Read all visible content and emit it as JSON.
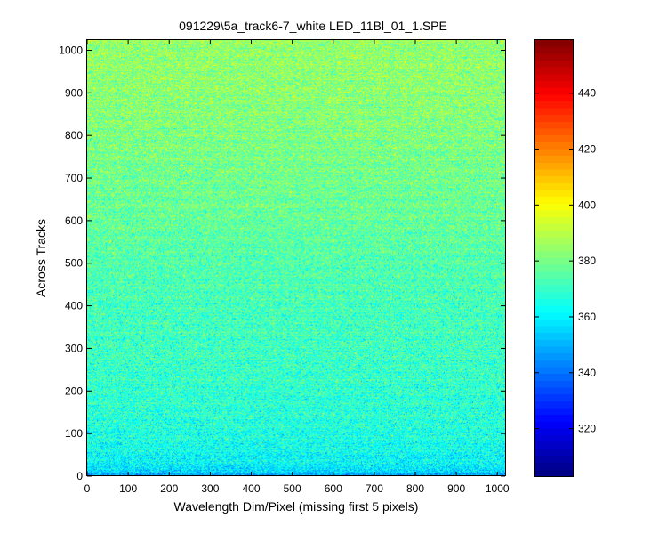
{
  "chart_data": {
    "type": "heatmap",
    "title": "091229\\5a_track6-7_white LED_11Bl_01_1.SPE",
    "xlabel": "Wavelength Dim/Pixel (missing first 5 pixels)",
    "ylabel": "Across Tracks",
    "xlim": [
      0,
      1019
    ],
    "ylim": [
      0,
      1024
    ],
    "x_ticks": [
      0,
      100,
      200,
      300,
      400,
      500,
      600,
      700,
      800,
      900,
      1000
    ],
    "y_ticks": [
      0,
      100,
      200,
      300,
      400,
      500,
      600,
      700,
      800,
      900,
      1000
    ],
    "colormap": "jet",
    "clim": [
      303,
      459
    ],
    "colorbar_ticks": [
      320,
      340,
      360,
      380,
      400,
      420,
      440
    ],
    "row_profile": {
      "rows": [
        0,
        10,
        20,
        50,
        100,
        200,
        300,
        400,
        500,
        600,
        700,
        800,
        900,
        1000,
        1024
      ],
      "mean_values": [
        345,
        355,
        360,
        363,
        366,
        369,
        371,
        372,
        374,
        377,
        379,
        381,
        383,
        384,
        385
      ]
    },
    "grid": false
  }
}
